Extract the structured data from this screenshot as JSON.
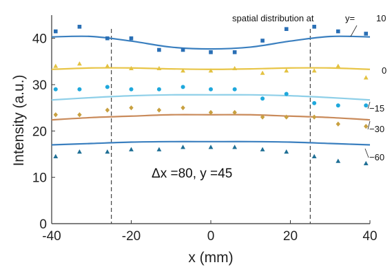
{
  "chart_data": {
    "type": "scatter",
    "xlabel": "x (mm)",
    "ylabel": "Intensity (a.u.)",
    "xlim": [
      -40,
      40
    ],
    "ylim": [
      0,
      45
    ],
    "xticks": [
      -40,
      -20,
      0,
      20,
      40
    ],
    "yticks": [
      0,
      10,
      20,
      30,
      40
    ],
    "vlines": [
      -25,
      25
    ],
    "grid": false,
    "legend_header": "spatial distribution at",
    "legend_y_prefix": "y=",
    "annotation": "Δx =80, y =45",
    "series": [
      {
        "name": "10",
        "marker": "square",
        "color": "#2a6fb5",
        "line_color": "#3a7fbf",
        "x": [
          -39,
          -33,
          -26,
          -20,
          -13,
          -7,
          0,
          6,
          13,
          19,
          26,
          32,
          39
        ],
        "y": [
          41.5,
          42.5,
          40,
          40,
          37.5,
          37.5,
          37,
          37,
          39.5,
          42,
          42.5,
          41.5,
          41
        ],
        "fit": [
          [
            -40,
            40.3
          ],
          [
            -30,
            40.4
          ],
          [
            -20,
            39.4
          ],
          [
            -10,
            38.1
          ],
          [
            0,
            37.7
          ],
          [
            10,
            38.1
          ],
          [
            20,
            39.4
          ],
          [
            30,
            40.4
          ],
          [
            40,
            40.3
          ]
        ]
      },
      {
        "name": "0",
        "marker": "triangle",
        "color": "#e3c242",
        "line_color": "#e8c547",
        "x": [
          -39,
          -33,
          -26,
          -20,
          -13,
          -7,
          0,
          6,
          13,
          19,
          26,
          32,
          39
        ],
        "y": [
          34,
          34.5,
          34,
          33.5,
          33.5,
          33,
          33,
          33.5,
          32.5,
          33,
          33,
          34,
          31.5
        ],
        "fit": [
          [
            -40,
            33.3
          ],
          [
            -30,
            33.6
          ],
          [
            -20,
            33.6
          ],
          [
            -10,
            33.4
          ],
          [
            0,
            33.3
          ],
          [
            10,
            33.4
          ],
          [
            20,
            33.6
          ],
          [
            30,
            33.6
          ],
          [
            40,
            33.3
          ]
        ]
      },
      {
        "name": "−15",
        "marker": "circle",
        "color": "#1fa8dc",
        "line_color": "#8ecfe8",
        "x": [
          -39,
          -33,
          -26,
          -20,
          -13,
          -7,
          0,
          6,
          13,
          19,
          26,
          32,
          39
        ],
        "y": [
          29,
          29,
          29.5,
          29,
          29,
          29.5,
          29,
          29,
          27,
          28,
          26,
          25.5,
          25.5
        ],
        "fit": [
          [
            -40,
            26.7
          ],
          [
            -30,
            27.2
          ],
          [
            -20,
            27.6
          ],
          [
            -10,
            27.8
          ],
          [
            0,
            27.8
          ],
          [
            10,
            27.8
          ],
          [
            20,
            27.6
          ],
          [
            30,
            27.2
          ],
          [
            40,
            26.7
          ]
        ]
      },
      {
        "name": "−30",
        "marker": "diamond",
        "color": "#c8a040",
        "line_color": "#c98a5a",
        "x": [
          -39,
          -33,
          -26,
          -20,
          -13,
          -7,
          0,
          6,
          13,
          19,
          26,
          32,
          39
        ],
        "y": [
          23.5,
          23.5,
          24.5,
          25,
          24.5,
          25,
          24,
          24,
          23,
          23,
          23,
          21.5,
          21
        ],
        "fit": [
          [
            -40,
            22.4
          ],
          [
            -30,
            22.9
          ],
          [
            -20,
            23.2
          ],
          [
            -10,
            23.5
          ],
          [
            0,
            23.5
          ],
          [
            10,
            23.5
          ],
          [
            20,
            23.2
          ],
          [
            30,
            22.9
          ],
          [
            40,
            22.4
          ]
        ]
      },
      {
        "name": "−60",
        "marker": "triangle",
        "color": "#1f6f95",
        "line_color": "#3a7fbf",
        "x": [
          -39,
          -33,
          -26,
          -20,
          -13,
          -7,
          0,
          6,
          13,
          19,
          26,
          32,
          39
        ],
        "y": [
          14.5,
          15.5,
          15.5,
          16,
          16,
          16.5,
          16.5,
          16.5,
          16,
          15.5,
          14.5,
          13.5,
          13
        ],
        "fit": [
          [
            -40,
            17
          ],
          [
            -30,
            17.3
          ],
          [
            -20,
            17.6
          ],
          [
            -10,
            17.7
          ],
          [
            0,
            17.7
          ],
          [
            10,
            17.7
          ],
          [
            20,
            17.6
          ],
          [
            30,
            17.3
          ],
          [
            40,
            17
          ]
        ]
      }
    ]
  }
}
